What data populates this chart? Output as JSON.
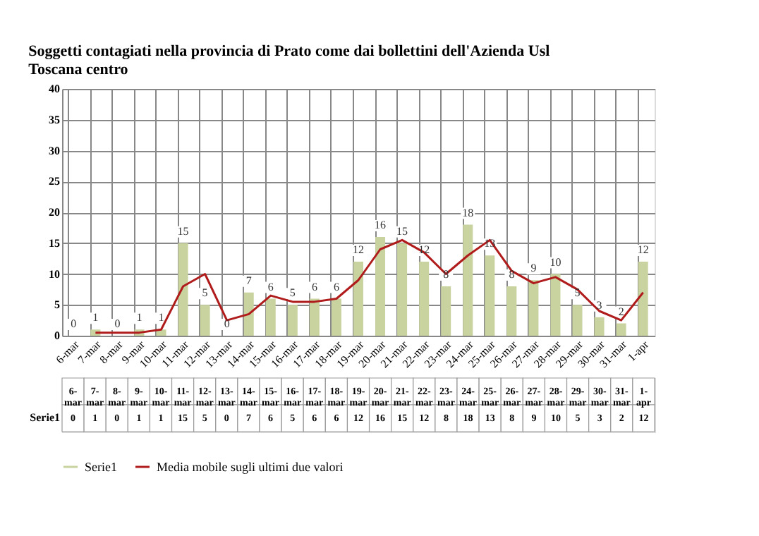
{
  "chart_data": {
    "type": "bar",
    "title": [
      "Soggetti contagiati nella provincia di Prato come dai bollettini dell'Azienda Usl",
      "Toscana centro"
    ],
    "categories": [
      "6-mar",
      "7-mar",
      "8-mar",
      "9-mar",
      "10-mar",
      "11-mar",
      "12-mar",
      "13-mar",
      "14-mar",
      "15-mar",
      "16-mar",
      "17-mar",
      "18-mar",
      "19-mar",
      "20-mar",
      "21-mar",
      "22-mar",
      "23-mar",
      "24-mar",
      "25-mar",
      "26-mar",
      "27-mar",
      "28-mar",
      "29-mar",
      "30-mar",
      "31-mar",
      "1-apr"
    ],
    "series": [
      {
        "name": "Serie1",
        "type": "bar",
        "color": "#c8d3a0",
        "values": [
          0,
          1,
          0,
          1,
          1,
          15,
          5,
          0,
          7,
          6,
          5,
          6,
          6,
          12,
          16,
          15,
          12,
          8,
          18,
          13,
          8,
          9,
          10,
          5,
          3,
          2,
          12
        ],
        "value_labels": [
          "0",
          "1",
          "0",
          "1",
          "1",
          "15",
          "5",
          "0",
          "7",
          "6",
          "5",
          "6",
          "6",
          "12",
          "16",
          "15",
          "12",
          "8",
          "18",
          "13",
          "8",
          "9",
          "10",
          "5",
          "3",
          "2",
          "12"
        ]
      },
      {
        "name": "Media mobile sugli ultimi due valori",
        "type": "line",
        "color": "#b01c1c",
        "values": [
          null,
          0.5,
          0.5,
          0.5,
          1,
          8,
          10,
          2.5,
          3.5,
          6.5,
          5.5,
          5.5,
          6,
          9,
          14,
          15.5,
          13.5,
          10,
          13,
          15.5,
          10.5,
          8.5,
          9.5,
          7.5,
          4,
          2.5,
          7
        ]
      }
    ],
    "ylim": [
      0,
      40
    ],
    "yticks": [
      0,
      5,
      10,
      15,
      20,
      25,
      30,
      35,
      40
    ],
    "grid": true,
    "legend": "bottom"
  }
}
